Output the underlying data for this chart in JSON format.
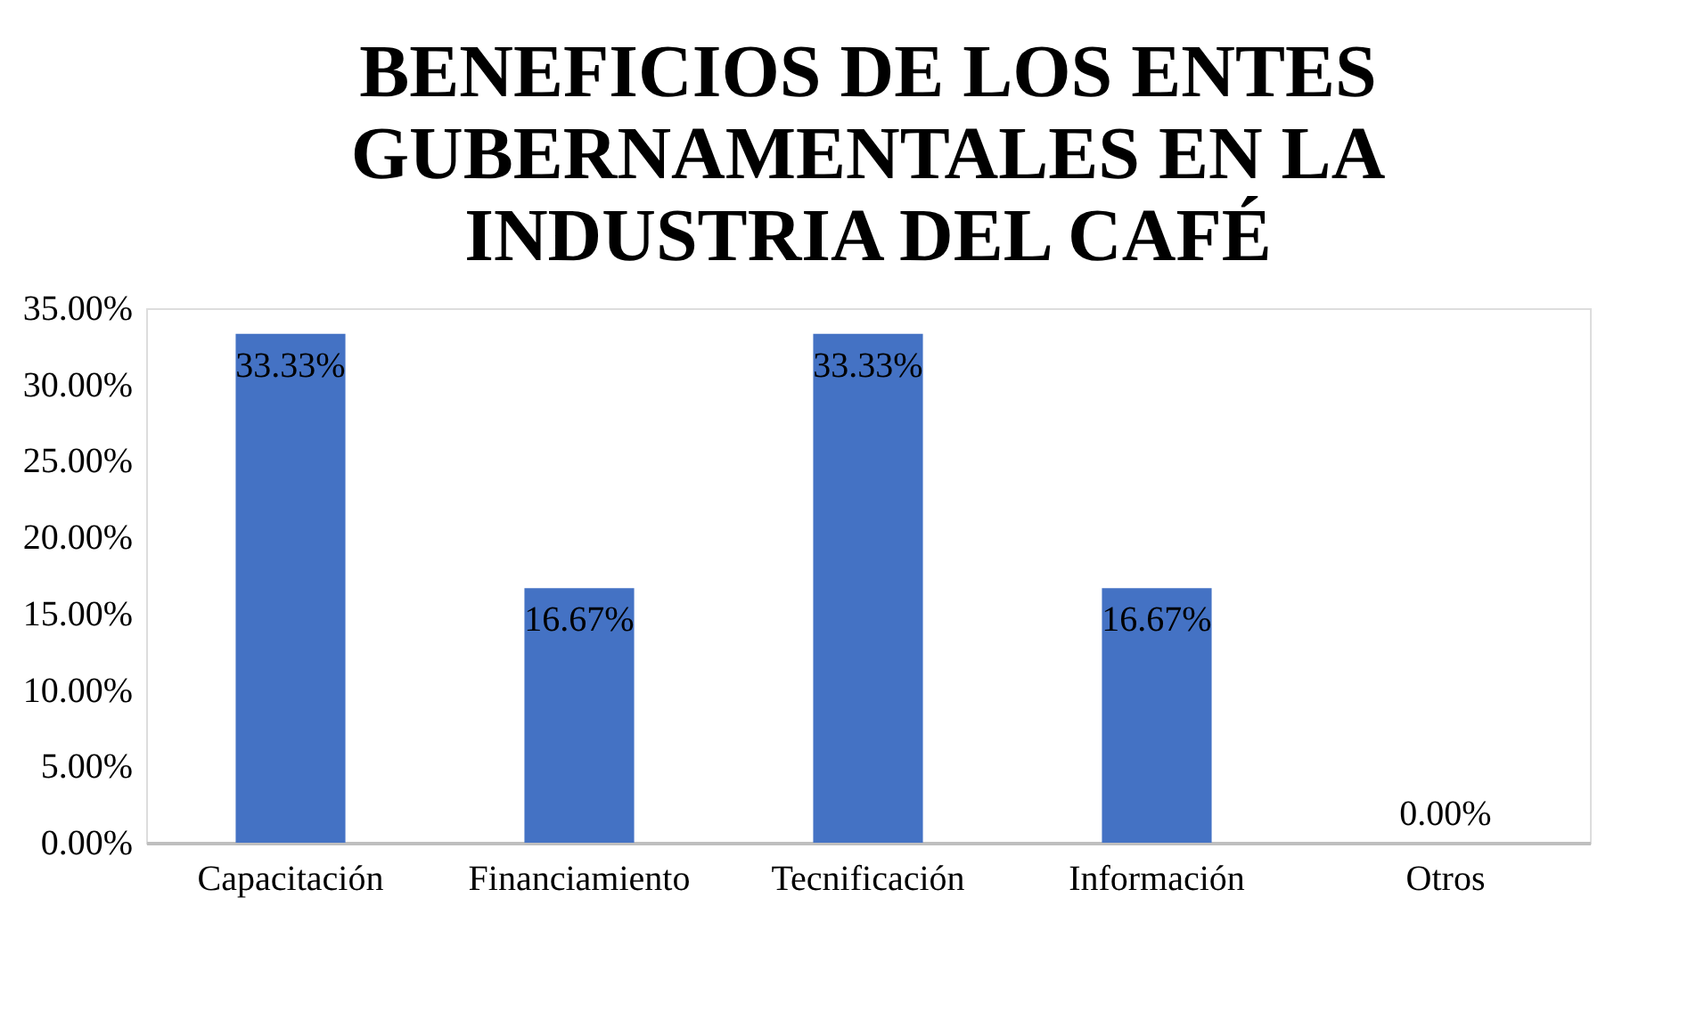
{
  "chart_data": {
    "type": "bar",
    "title": "BENEFICIOS DE LOS ENTES GUBERNAMENTALES EN LA INDUSTRIA DEL CAFÉ",
    "categories": [
      "Capacitación",
      "Financiamiento",
      "Tecnificación",
      "Información",
      "Otros"
    ],
    "values": [
      33.33,
      16.67,
      33.33,
      16.67,
      0
    ],
    "value_labels": [
      "33.33%",
      "16.67%",
      "33.33%",
      "16.67%",
      "0.00%"
    ],
    "color": "#4472c4",
    "ylim": [
      0,
      35
    ],
    "yticks": [
      {
        "value": 0,
        "label": "0.00%"
      },
      {
        "value": 5,
        "label": "5.00%"
      },
      {
        "value": 10,
        "label": "10.00%"
      },
      {
        "value": 15,
        "label": "15.00%"
      },
      {
        "value": 20,
        "label": "20.00%"
      },
      {
        "value": 25,
        "label": "25.00%"
      },
      {
        "value": 30,
        "label": "30.00%"
      },
      {
        "value": 35,
        "label": "35.00%"
      }
    ],
    "grid": false
  }
}
